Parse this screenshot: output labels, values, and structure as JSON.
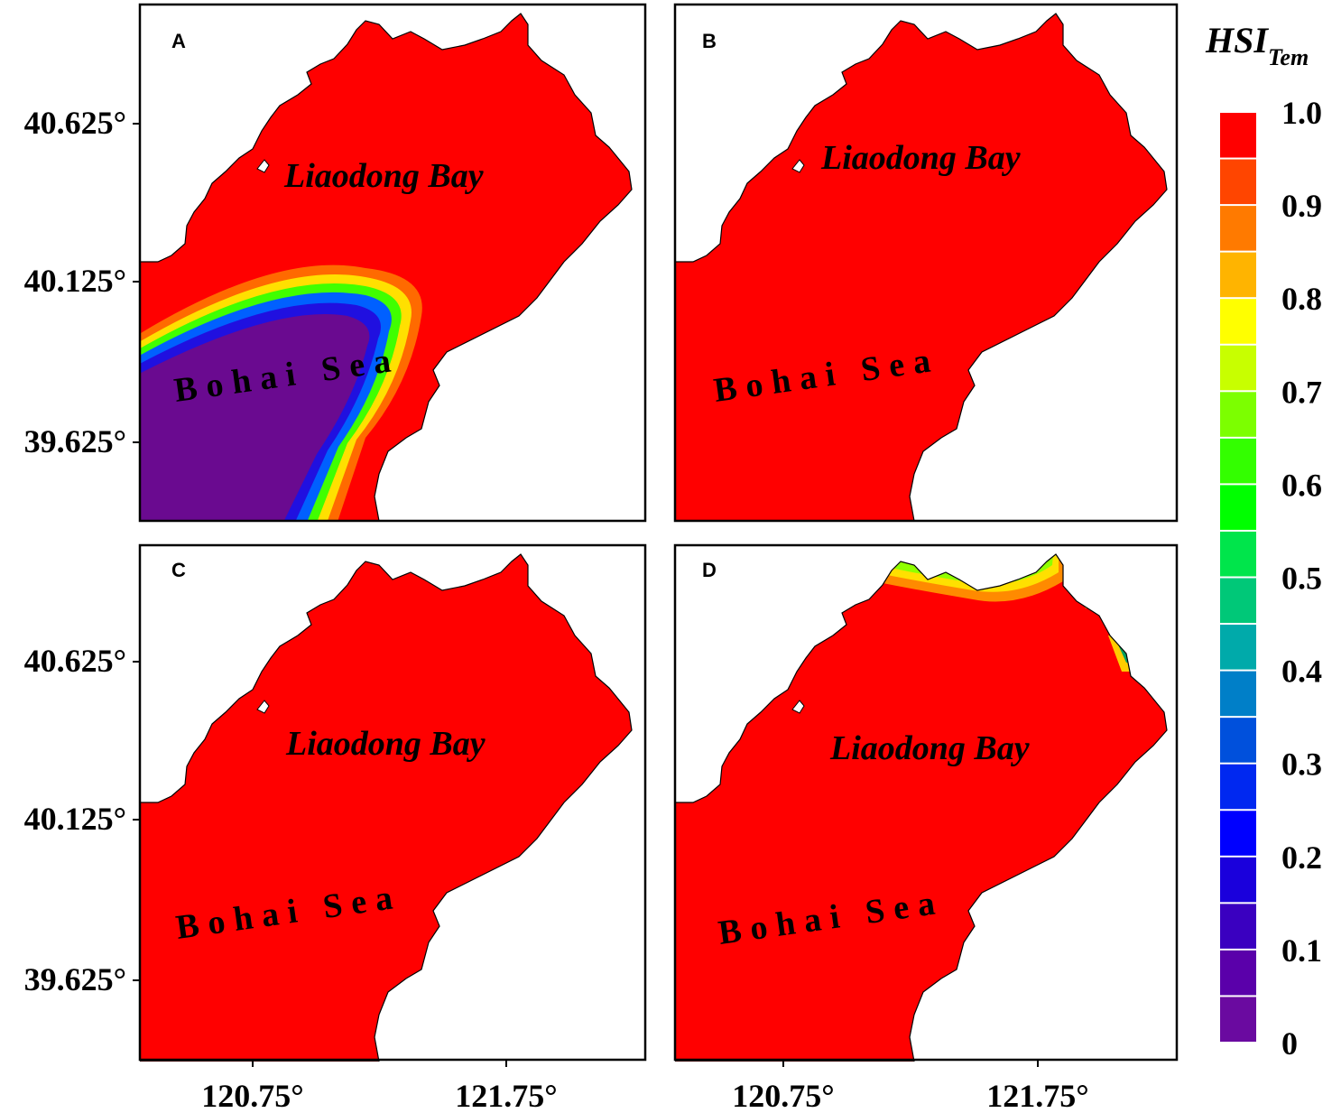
{
  "figure": {
    "panels": [
      {
        "id": "A",
        "label": "A",
        "bay_label": "Liaodong Bay",
        "sea_label": "Bohai Sea"
      },
      {
        "id": "B",
        "label": "B",
        "bay_label": "Liaodong Bay",
        "sea_label": "Bohai Sea"
      },
      {
        "id": "C",
        "label": "C",
        "bay_label": "Liaodong Bay",
        "sea_label": "Bohai Sea"
      },
      {
        "id": "D",
        "label": "D",
        "bay_label": "Liaodong Bay",
        "sea_label": "Bohai Sea"
      }
    ],
    "lat_ticks": [
      "40.625°",
      "40.125°",
      "39.625°"
    ],
    "lon_ticks": [
      "120.75°",
      "121.75°"
    ]
  },
  "colorbar": {
    "title_main": "HSI",
    "title_sub": "Tem",
    "tick_labels": [
      "1.0",
      "0.9",
      "0.8",
      "0.7",
      "0.6",
      "0.5",
      "0.4",
      "0.3",
      "0.2",
      "0.1",
      "0"
    ],
    "colors": [
      "#ff0000",
      "#ff4500",
      "#ff7a00",
      "#ffb400",
      "#ffff00",
      "#c8ff00",
      "#7cff00",
      "#33ff00",
      "#00ff00",
      "#00e54b",
      "#00c878",
      "#00aaaa",
      "#007fc8",
      "#0050dc",
      "#0028f0",
      "#0000ff",
      "#1a00dc",
      "#3a00c0",
      "#5a00aa",
      "#6a0aa0"
    ]
  },
  "colors": {
    "land": "#ffffff",
    "suitable_water": "#ff0000",
    "low_suitability_water": "#6a0a90"
  }
}
